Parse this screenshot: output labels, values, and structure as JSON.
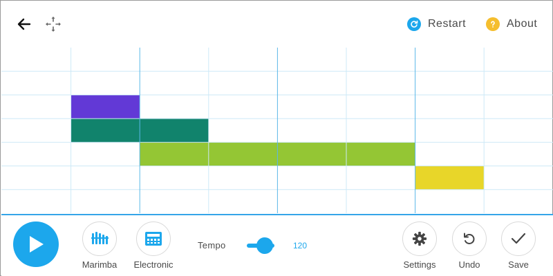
{
  "header": {
    "back_icon": "arrow-left-icon",
    "move_icon": "move-arrows-icon",
    "restart_label": "Restart",
    "restart_icon": "refresh-icon",
    "about_label": "About",
    "about_icon": "question-icon"
  },
  "colors": {
    "accent": "#1ca7ec",
    "grid_line": "#cde9f7",
    "grid_major": "#5bb8e8",
    "note_purple": "#6239d6",
    "note_teal": "#11836c",
    "note_green": "#94c634",
    "note_yellow": "#e8d629"
  },
  "sequencer": {
    "rows": 7,
    "columns": 8,
    "notes": [
      {
        "row": 2,
        "col": 1,
        "length": 1,
        "color": "#6239d6"
      },
      {
        "row": 3,
        "col": 1,
        "length": 2,
        "color": "#11836c"
      },
      {
        "row": 4,
        "col": 2,
        "length": 4,
        "color": "#94c634"
      },
      {
        "row": 5,
        "col": 6,
        "length": 1,
        "color": "#e8d629"
      }
    ]
  },
  "bottom_bar": {
    "play_icon": "play-icon",
    "instruments": [
      {
        "label": "Marimba",
        "icon": "marimba-icon"
      },
      {
        "label": "Electronic",
        "icon": "drum-machine-icon"
      }
    ],
    "tempo_label": "Tempo",
    "tempo_value": "120",
    "tempo_level": 0.5,
    "settings_label": "Settings",
    "undo_label": "Undo",
    "save_label": "Save"
  }
}
